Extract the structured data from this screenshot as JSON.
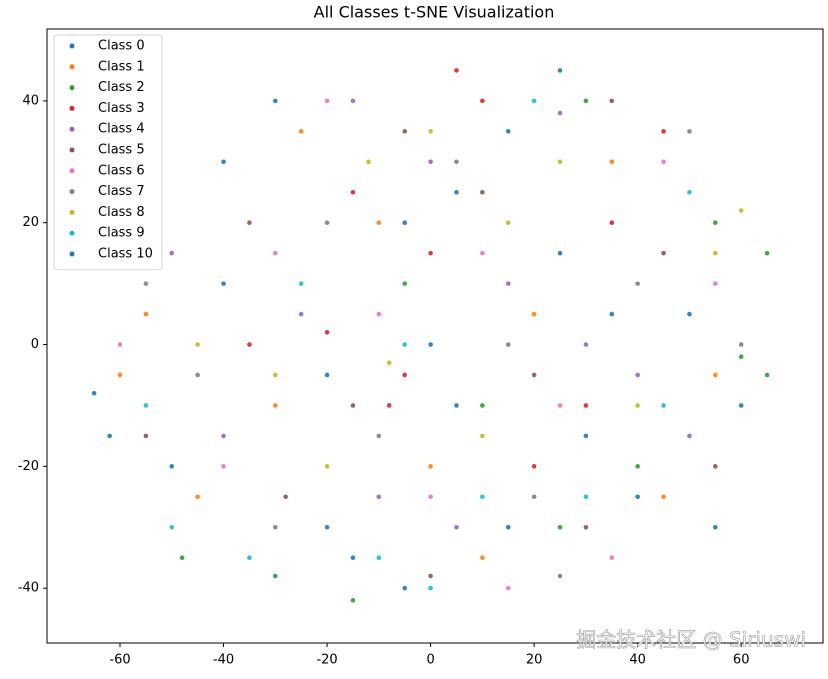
{
  "chart_data": {
    "type": "scatter",
    "title": "All Classes t-SNE Visualization",
    "xlim": [
      -74.1,
      75.8
    ],
    "ylim": [
      -49,
      51.8
    ],
    "xticks": [
      -60,
      -40,
      -20,
      0,
      20,
      40,
      60
    ],
    "yticks": [
      -40,
      -20,
      0,
      20,
      40
    ],
    "legend": "upper left",
    "watermark": "掘金技术社区 @ Siriuswi",
    "series": [
      {
        "name": "Class 0",
        "color": "#1f77b4",
        "x": [
          -65,
          -40,
          -20,
          5,
          30,
          50,
          -5,
          15,
          -50,
          60,
          0,
          25
        ],
        "y": [
          -8,
          10,
          -30,
          25,
          -15,
          5,
          -40,
          35,
          -20,
          -10,
          0,
          15
        ]
      },
      {
        "name": "Class 1",
        "color": "#ff7f0e",
        "x": [
          -60,
          -45,
          -30,
          -10,
          10,
          35,
          55,
          -25,
          0,
          20,
          45,
          -55
        ],
        "y": [
          -5,
          -25,
          -10,
          20,
          -35,
          30,
          -5,
          35,
          -20,
          5,
          -25,
          5
        ]
      },
      {
        "name": "Class 2",
        "color": "#2ca02c",
        "x": [
          65,
          60,
          -48,
          -30,
          10,
          40,
          -15,
          25,
          55,
          -5,
          65,
          30
        ],
        "y": [
          15,
          -2,
          -35,
          -38,
          -10,
          -20,
          -42,
          -30,
          20,
          10,
          -5,
          40
        ]
      },
      {
        "name": "Class 3",
        "color": "#d62728",
        "x": [
          -20,
          -8,
          -5,
          0,
          30,
          35,
          -15,
          10,
          20,
          -35,
          45,
          5
        ],
        "y": [
          2,
          -10,
          -5,
          15,
          -10,
          20,
          25,
          40,
          -20,
          0,
          35,
          45
        ]
      },
      {
        "name": "Class 4",
        "color": "#9467bd",
        "x": [
          -25,
          -10,
          15,
          40,
          -40,
          5,
          25,
          -15,
          50,
          -50,
          0,
          30
        ],
        "y": [
          5,
          -25,
          10,
          -5,
          -15,
          -30,
          38,
          40,
          -15,
          15,
          30,
          0
        ]
      },
      {
        "name": "Class 5",
        "color": "#8c564b",
        "x": [
          -15,
          -35,
          10,
          30,
          -55,
          45,
          -5,
          20,
          0,
          -28,
          55,
          35
        ],
        "y": [
          -10,
          20,
          25,
          -30,
          -15,
          15,
          35,
          -5,
          -38,
          -25,
          -20,
          40
        ]
      },
      {
        "name": "Class 6",
        "color": "#e377c2",
        "x": [
          -40,
          10,
          -20,
          25,
          -60,
          45,
          0,
          -10,
          35,
          15,
          -30,
          55
        ],
        "y": [
          -20,
          15,
          40,
          -10,
          0,
          30,
          -25,
          5,
          -35,
          -40,
          15,
          10
        ]
      },
      {
        "name": "Class 7",
        "color": "#7f7f7f",
        "x": [
          -45,
          20,
          -10,
          40,
          5,
          -30,
          50,
          -55,
          15,
          -20,
          60,
          25
        ],
        "y": [
          -5,
          -25,
          -15,
          10,
          30,
          -30,
          35,
          10,
          0,
          20,
          0,
          -38
        ]
      },
      {
        "name": "Class 8",
        "color": "#bcbd22",
        "x": [
          -30,
          -8,
          60,
          55,
          -20,
          15,
          0,
          40,
          -45,
          25,
          10,
          -12
        ],
        "y": [
          -5,
          -3,
          22,
          15,
          -20,
          20,
          35,
          -10,
          0,
          30,
          -15,
          30
        ]
      },
      {
        "name": "Class 9",
        "color": "#17becf",
        "x": [
          -50,
          -35,
          -10,
          20,
          10,
          -55,
          -5,
          30,
          45,
          -25,
          50,
          0
        ],
        "y": [
          -30,
          -35,
          -35,
          40,
          -25,
          -10,
          0,
          -25,
          -10,
          10,
          25,
          -40
        ]
      },
      {
        "name": "Class 10",
        "color": "#1f77b4",
        "x": [
          -62,
          -20,
          15,
          35,
          -5,
          25,
          -40,
          5,
          55,
          -15,
          40,
          -30
        ],
        "y": [
          -15,
          -5,
          -30,
          5,
          20,
          45,
          30,
          -10,
          -30,
          -35,
          -25,
          40
        ]
      }
    ]
  }
}
